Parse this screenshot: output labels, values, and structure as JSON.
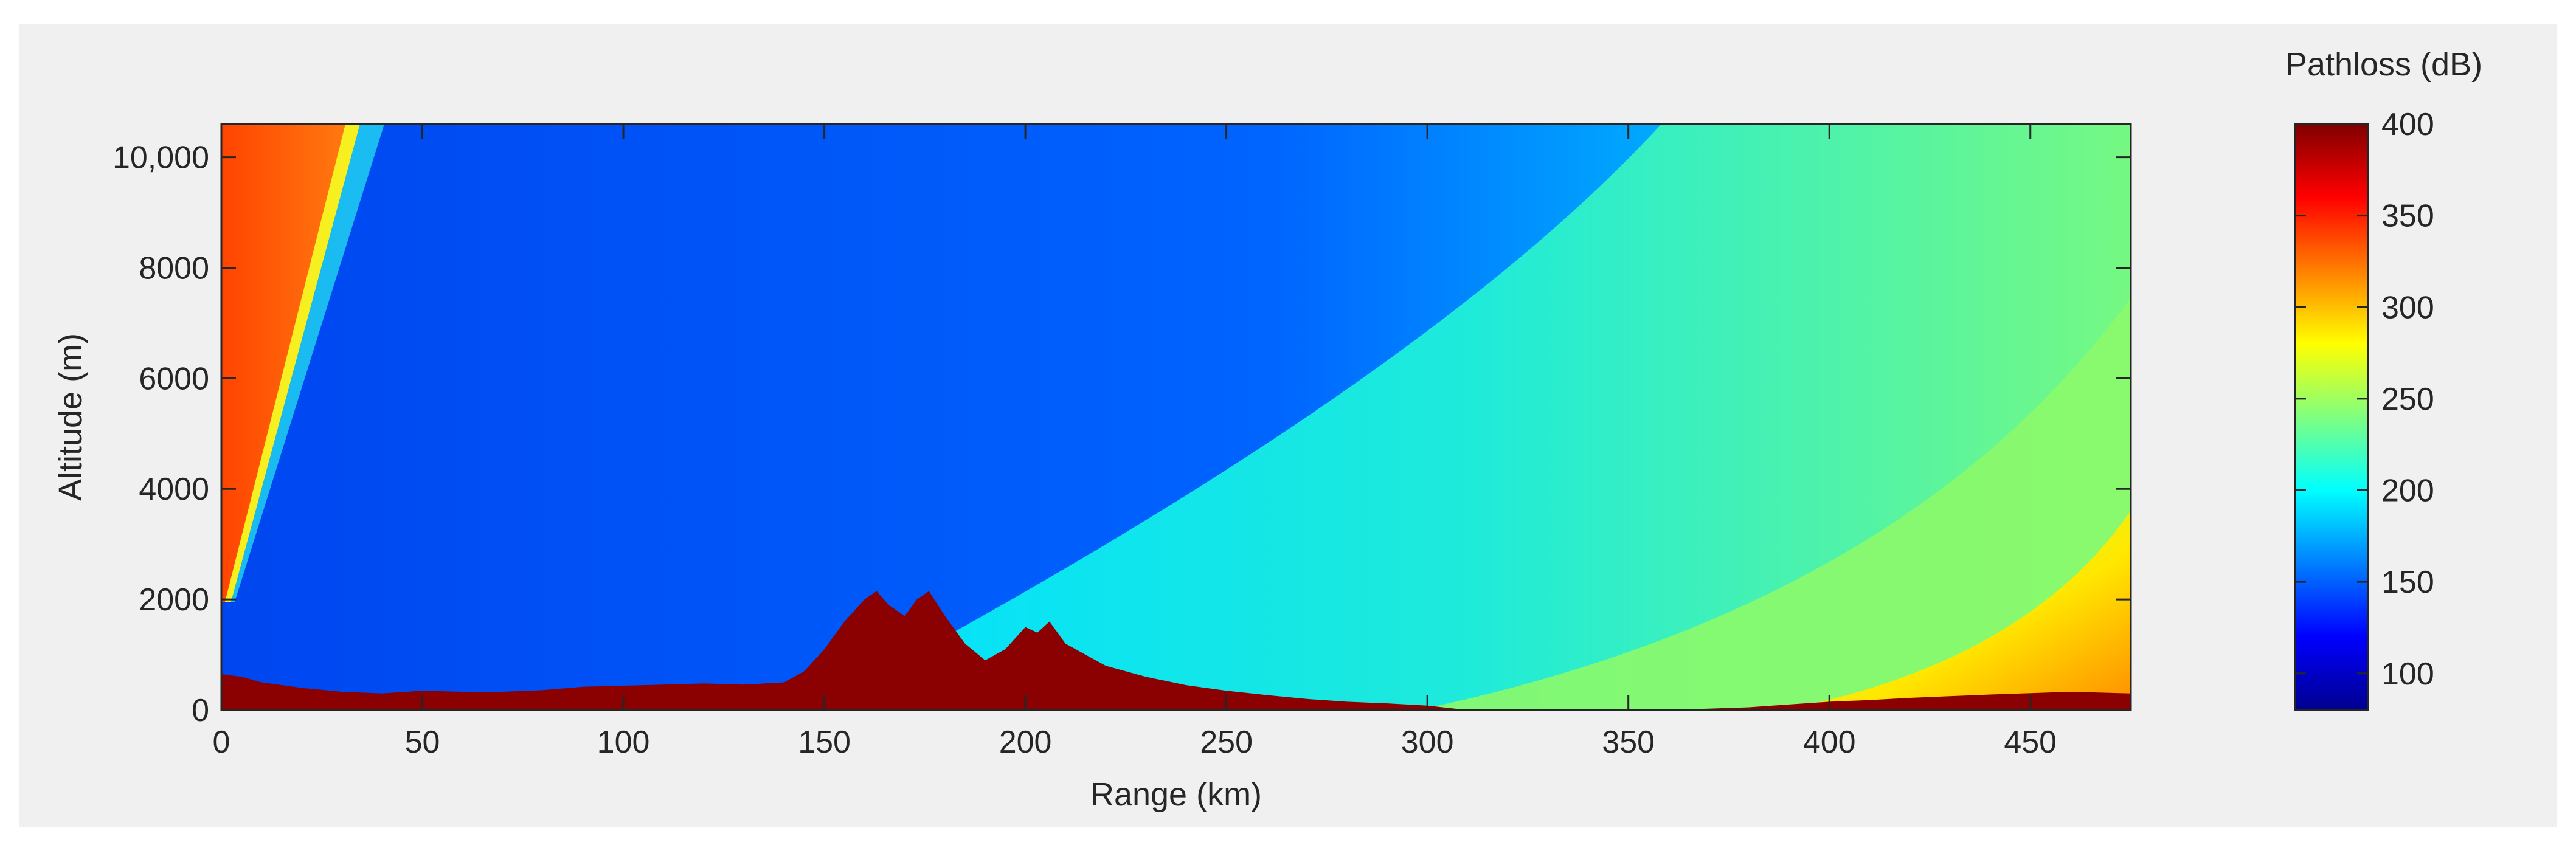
{
  "chart_data": {
    "type": "heatmap",
    "title": "",
    "xlabel": "Range (km)",
    "ylabel": "Altitude (m)",
    "xlim": [
      0,
      475
    ],
    "ylim": [
      0,
      10600
    ],
    "x_ticks": [
      0,
      50,
      100,
      150,
      200,
      250,
      300,
      350,
      400,
      450
    ],
    "x_tick_labels": [
      "0",
      "50",
      "100",
      "150",
      "200",
      "250",
      "300",
      "350",
      "400",
      "450"
    ],
    "y_ticks": [
      0,
      2000,
      4000,
      6000,
      8000,
      10000
    ],
    "y_tick_labels": [
      "0",
      "2000",
      "4000",
      "6000",
      "8000",
      "10,000"
    ],
    "colorbar": {
      "label": "Pathloss (dB)",
      "range": [
        80,
        400
      ],
      "colormap": "jet",
      "ticks": [
        100,
        150,
        200,
        250,
        300,
        350,
        400
      ],
      "tick_labels": [
        "100",
        "150",
        "200",
        "250",
        "300",
        "350",
        "400"
      ]
    },
    "terrain": {
      "color": "#8b0000",
      "x": [
        0,
        5,
        10,
        20,
        30,
        40,
        50,
        60,
        70,
        80,
        90,
        100,
        110,
        120,
        130,
        140,
        145,
        150,
        155,
        160,
        163,
        166,
        170,
        173,
        176,
        180,
        185,
        190,
        195,
        200,
        203,
        206,
        210,
        215,
        220,
        230,
        240,
        250,
        260,
        270,
        280,
        290,
        300,
        305,
        310,
        320,
        340,
        360,
        380,
        390,
        400,
        410,
        420,
        440,
        460,
        475
      ],
      "y": [
        650,
        600,
        500,
        400,
        330,
        300,
        350,
        330,
        330,
        360,
        420,
        440,
        460,
        480,
        460,
        500,
        700,
        1100,
        1600,
        2000,
        2150,
        1900,
        1700,
        2000,
        2150,
        1700,
        1200,
        900,
        1100,
        1500,
        1400,
        1600,
        1200,
        1000,
        800,
        600,
        450,
        350,
        270,
        200,
        150,
        120,
        80,
        40,
        0,
        0,
        0,
        0,
        50,
        100,
        150,
        180,
        220,
        280,
        330,
        300
      ]
    }
  }
}
